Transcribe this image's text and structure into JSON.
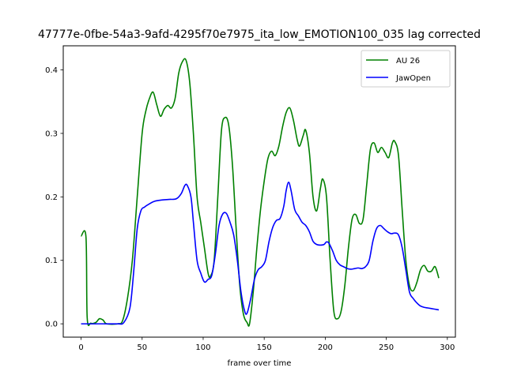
{
  "chart_data": {
    "type": "line",
    "title": "47777e-0fbe-54a3-9afd-4295f70e7975_ita_low_EMOTION100_035  lag corrected",
    "xlabel": "frame over time",
    "ylabel": "",
    "xlim": [
      -14.6,
      306.6
    ],
    "ylim": [
      -0.021,
      0.438
    ],
    "xticks": [
      0,
      50,
      100,
      150,
      200,
      250,
      300
    ],
    "yticks": [
      0.0,
      0.1,
      0.2,
      0.3,
      0.4
    ],
    "ytick_labels": [
      "0.0",
      "0.1",
      "0.2",
      "0.3",
      "0.4"
    ],
    "grid": false,
    "legend_position": "top-right",
    "series": [
      {
        "name": "AU 26",
        "color": "#008000",
        "points": [
          [
            0,
            0.138
          ],
          [
            4,
            0.137
          ],
          [
            5,
            0.01
          ],
          [
            8,
            0.001
          ],
          [
            12,
            0.002
          ],
          [
            15,
            0.008
          ],
          [
            18,
            0.006
          ],
          [
            21,
            0.0
          ],
          [
            30,
            0.0
          ],
          [
            34,
            0.005
          ],
          [
            38,
            0.04
          ],
          [
            42,
            0.1
          ],
          [
            46,
            0.2
          ],
          [
            50,
            0.3
          ],
          [
            53,
            0.335
          ],
          [
            56,
            0.355
          ],
          [
            59,
            0.365
          ],
          [
            62,
            0.345
          ],
          [
            65,
            0.327
          ],
          [
            68,
            0.338
          ],
          [
            71,
            0.344
          ],
          [
            74,
            0.34
          ],
          [
            77,
            0.355
          ],
          [
            80,
            0.395
          ],
          [
            83,
            0.413
          ],
          [
            86,
            0.415
          ],
          [
            89,
            0.38
          ],
          [
            92,
            0.3
          ],
          [
            95,
            0.2
          ],
          [
            98,
            0.16
          ],
          [
            101,
            0.12
          ],
          [
            104,
            0.08
          ],
          [
            106,
            0.075
          ],
          [
            109,
            0.1
          ],
          [
            112,
            0.2
          ],
          [
            115,
            0.305
          ],
          [
            118,
            0.325
          ],
          [
            121,
            0.312
          ],
          [
            124,
            0.25
          ],
          [
            127,
            0.15
          ],
          [
            130,
            0.06
          ],
          [
            133,
            0.015
          ],
          [
            136,
            0.002
          ],
          [
            138,
            0.0
          ],
          [
            141,
            0.05
          ],
          [
            144,
            0.12
          ],
          [
            147,
            0.18
          ],
          [
            150,
            0.225
          ],
          [
            153,
            0.26
          ],
          [
            156,
            0.272
          ],
          [
            159,
            0.265
          ],
          [
            162,
            0.28
          ],
          [
            165,
            0.31
          ],
          [
            168,
            0.333
          ],
          [
            171,
            0.34
          ],
          [
            174,
            0.32
          ],
          [
            177,
            0.29
          ],
          [
            179,
            0.28
          ],
          [
            182,
            0.297
          ],
          [
            184,
            0.305
          ],
          [
            187,
            0.27
          ],
          [
            190,
            0.2
          ],
          [
            193,
            0.178
          ],
          [
            196,
            0.213
          ],
          [
            198,
            0.228
          ],
          [
            201,
            0.2
          ],
          [
            204,
            0.1
          ],
          [
            207,
            0.02
          ],
          [
            210,
            0.008
          ],
          [
            213,
            0.02
          ],
          [
            216,
            0.06
          ],
          [
            219,
            0.12
          ],
          [
            222,
            0.165
          ],
          [
            225,
            0.172
          ],
          [
            228,
            0.158
          ],
          [
            231,
            0.165
          ],
          [
            234,
            0.22
          ],
          [
            237,
            0.275
          ],
          [
            240,
            0.285
          ],
          [
            243,
            0.27
          ],
          [
            246,
            0.278
          ],
          [
            249,
            0.27
          ],
          [
            252,
            0.262
          ],
          [
            255,
            0.285
          ],
          [
            257,
            0.287
          ],
          [
            260,
            0.265
          ],
          [
            263,
            0.18
          ],
          [
            266,
            0.1
          ],
          [
            269,
            0.06
          ],
          [
            272,
            0.052
          ],
          [
            275,
            0.065
          ],
          [
            278,
            0.085
          ],
          [
            281,
            0.092
          ],
          [
            284,
            0.083
          ],
          [
            287,
            0.083
          ],
          [
            290,
            0.09
          ],
          [
            293,
            0.072
          ]
        ]
      },
      {
        "name": "JawOpen",
        "color": "#0000ff",
        "points": [
          [
            0,
            0.0
          ],
          [
            10,
            0.0
          ],
          [
            20,
            0.0
          ],
          [
            30,
            0.0
          ],
          [
            35,
            0.002
          ],
          [
            40,
            0.025
          ],
          [
            43,
            0.08
          ],
          [
            46,
            0.15
          ],
          [
            49,
            0.178
          ],
          [
            52,
            0.184
          ],
          [
            56,
            0.189
          ],
          [
            60,
            0.193
          ],
          [
            66,
            0.195
          ],
          [
            72,
            0.196
          ],
          [
            78,
            0.197
          ],
          [
            82,
            0.205
          ],
          [
            85,
            0.218
          ],
          [
            87,
            0.218
          ],
          [
            90,
            0.2
          ],
          [
            92,
            0.16
          ],
          [
            95,
            0.1
          ],
          [
            98,
            0.08
          ],
          [
            101,
            0.066
          ],
          [
            104,
            0.07
          ],
          [
            107,
            0.076
          ],
          [
            110,
            0.11
          ],
          [
            113,
            0.155
          ],
          [
            116,
            0.173
          ],
          [
            119,
            0.174
          ],
          [
            122,
            0.16
          ],
          [
            125,
            0.14
          ],
          [
            128,
            0.1
          ],
          [
            131,
            0.05
          ],
          [
            134,
            0.02
          ],
          [
            136,
            0.017
          ],
          [
            139,
            0.04
          ],
          [
            142,
            0.07
          ],
          [
            145,
            0.085
          ],
          [
            148,
            0.09
          ],
          [
            151,
            0.1
          ],
          [
            154,
            0.13
          ],
          [
            157,
            0.152
          ],
          [
            160,
            0.163
          ],
          [
            163,
            0.166
          ],
          [
            166,
            0.185
          ],
          [
            168,
            0.21
          ],
          [
            170,
            0.223
          ],
          [
            172,
            0.21
          ],
          [
            175,
            0.18
          ],
          [
            178,
            0.17
          ],
          [
            181,
            0.16
          ],
          [
            184,
            0.155
          ],
          [
            187,
            0.145
          ],
          [
            190,
            0.13
          ],
          [
            193,
            0.125
          ],
          [
            196,
            0.124
          ],
          [
            199,
            0.125
          ],
          [
            201,
            0.129
          ],
          [
            203,
            0.127
          ],
          [
            206,
            0.115
          ],
          [
            209,
            0.1
          ],
          [
            212,
            0.093
          ],
          [
            215,
            0.09
          ],
          [
            218,
            0.087
          ],
          [
            221,
            0.086
          ],
          [
            224,
            0.087
          ],
          [
            227,
            0.088
          ],
          [
            230,
            0.087
          ],
          [
            233,
            0.09
          ],
          [
            236,
            0.1
          ],
          [
            239,
            0.13
          ],
          [
            242,
            0.15
          ],
          [
            245,
            0.155
          ],
          [
            248,
            0.15
          ],
          [
            251,
            0.145
          ],
          [
            254,
            0.142
          ],
          [
            257,
            0.143
          ],
          [
            260,
            0.14
          ],
          [
            263,
            0.12
          ],
          [
            266,
            0.085
          ],
          [
            269,
            0.05
          ],
          [
            272,
            0.04
          ],
          [
            275,
            0.033
          ],
          [
            278,
            0.028
          ],
          [
            281,
            0.026
          ],
          [
            284,
            0.025
          ],
          [
            287,
            0.024
          ],
          [
            290,
            0.023
          ],
          [
            293,
            0.022
          ]
        ]
      }
    ]
  }
}
